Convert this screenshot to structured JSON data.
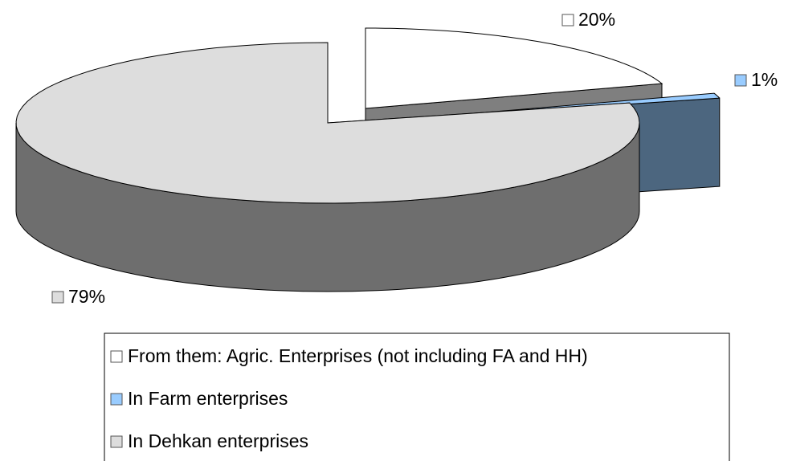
{
  "chart_data": {
    "type": "pie3d",
    "categories": [
      "From them: Agric. Enterprises (not including FA and HH)",
      "In Farm enterprises",
      "In Dehkan enterprises"
    ],
    "values": [
      20,
      1,
      79
    ],
    "value_labels": [
      "20%",
      "1%",
      "79%"
    ],
    "colors": [
      "#ffffff",
      "#99ccff",
      "#dddddd"
    ]
  }
}
